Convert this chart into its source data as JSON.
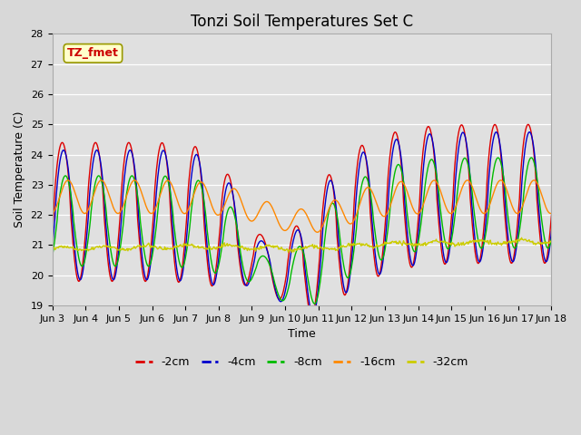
{
  "title": "Tonzi Soil Temperatures Set C",
  "xlabel": "Time",
  "ylabel": "Soil Temperature (C)",
  "ylim": [
    19.0,
    28.0
  ],
  "yticks": [
    19.0,
    20.0,
    21.0,
    22.0,
    23.0,
    24.0,
    25.0,
    26.0,
    27.0,
    28.0
  ],
  "xtick_labels": [
    "Jun 3",
    "Jun 4",
    "Jun 5",
    "Jun 6",
    "Jun 7",
    "Jun 8",
    "Jun 9",
    "Jun 10",
    "Jun 11",
    "Jun 12",
    "Jun 13",
    "Jun 14",
    "Jun 15",
    "Jun 16",
    "Jun 17",
    "Jun 18"
  ],
  "series_colors": [
    "#dd0000",
    "#0000cc",
    "#00bb00",
    "#ff8800",
    "#cccc00"
  ],
  "series_labels": [
    "-2cm",
    "-4cm",
    "-8cm",
    "-16cm",
    "-32cm"
  ],
  "annotation_text": "TZ_fmet",
  "annotation_bg": "#ffffcc",
  "annotation_border": "#999900",
  "fig_bg": "#d8d8d8",
  "plot_bg": "#e0e0e0",
  "grid_color": "#ffffff",
  "title_fontsize": 12,
  "label_fontsize": 9,
  "tick_fontsize": 8,
  "legend_fontsize": 9,
  "n_points": 720
}
